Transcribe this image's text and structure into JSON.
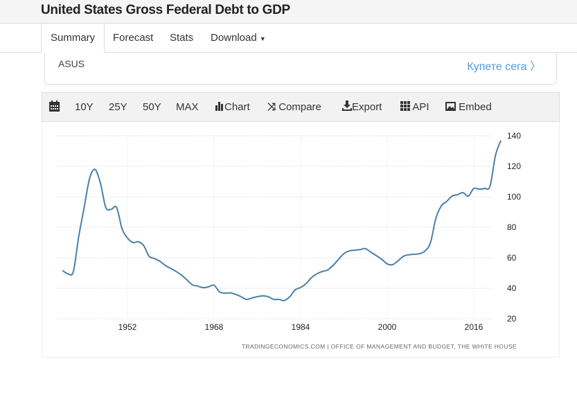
{
  "header": {
    "title": "United States Gross Federal Debt to GDP"
  },
  "nav": {
    "tabs": [
      {
        "label": "Summary"
      },
      {
        "label": "Forecast"
      },
      {
        "label": "Stats"
      },
      {
        "label": "Download"
      }
    ]
  },
  "ad": {
    "brand": "ASUS",
    "cta": "Купете сега"
  },
  "toolbar": {
    "items": [
      {
        "label": "10Y"
      },
      {
        "label": "25Y"
      },
      {
        "label": "50Y"
      },
      {
        "label": "MAX"
      },
      {
        "label": "Chart",
        "icon": "bar-chart-icon"
      },
      {
        "label": "Compare",
        "icon": "shuffle-icon"
      },
      {
        "label": "Export",
        "icon": "download-icon"
      },
      {
        "label": "API",
        "icon": "grid-icon"
      },
      {
        "label": "Embed",
        "icon": "image-icon"
      }
    ]
  },
  "colors": {
    "line": "#4a7fa8",
    "link": "#4a9ad9"
  },
  "chart_data": {
    "type": "line",
    "title": "United States Gross Federal Debt to GDP",
    "xlabel": "",
    "ylabel": "",
    "x_ticks": [
      1952,
      1968,
      1984,
      2000,
      2016
    ],
    "y_ticks": [
      20,
      40,
      60,
      80,
      100,
      120,
      140
    ],
    "xlim": [
      1940,
      2021
    ],
    "ylim": [
      20,
      140
    ],
    "grid": true,
    "source": "TRADINGECONOMICS.COM  |  OFFICE OF MANAGEMENT AND BUDGET, THE WHITE HOUSE",
    "series": [
      {
        "name": "Gross Federal Debt to GDP",
        "x": [
          1940,
          1941,
          1942,
          1943,
          1944,
          1945,
          1946,
          1947,
          1948,
          1949,
          1950,
          1951,
          1952,
          1953,
          1954,
          1955,
          1956,
          1957,
          1958,
          1959,
          1960,
          1961,
          1962,
          1963,
          1964,
          1965,
          1966,
          1967,
          1968,
          1969,
          1970,
          1971,
          1972,
          1973,
          1974,
          1975,
          1976,
          1977,
          1978,
          1979,
          1980,
          1981,
          1982,
          1983,
          1984,
          1985,
          1986,
          1987,
          1988,
          1989,
          1990,
          1991,
          1992,
          1993,
          1994,
          1995,
          1996,
          1997,
          1998,
          1999,
          2000,
          2001,
          2002,
          2003,
          2004,
          2005,
          2006,
          2007,
          2008,
          2009,
          2010,
          2011,
          2012,
          2013,
          2014,
          2015,
          2016,
          2017,
          2018,
          2019,
          2020,
          2021
        ],
        "values": [
          51.7,
          49.5,
          51,
          74,
          93,
          112,
          118,
          109,
          93,
          91.8,
          93,
          79,
          73,
          70,
          70.5,
          68,
          61,
          59.5,
          57.7,
          55,
          53,
          51,
          48.6,
          45.5,
          42.3,
          41.4,
          40.4,
          41,
          42,
          37.7,
          36.8,
          37,
          36,
          34.5,
          32.7,
          33.6,
          34.5,
          35,
          34.5,
          32.7,
          32.7,
          32,
          34.5,
          39,
          40.5,
          43,
          47,
          49.5,
          51,
          52,
          55,
          59,
          62.7,
          64.5,
          65,
          65.4,
          66,
          63.6,
          61.4,
          59,
          56,
          55.5,
          58,
          61,
          62,
          62.3,
          62.7,
          64.5,
          70,
          86,
          94,
          97,
          100.5,
          101.4,
          102.7,
          100.5,
          105.5,
          105,
          105.5,
          107,
          127,
          137
        ]
      }
    ]
  }
}
